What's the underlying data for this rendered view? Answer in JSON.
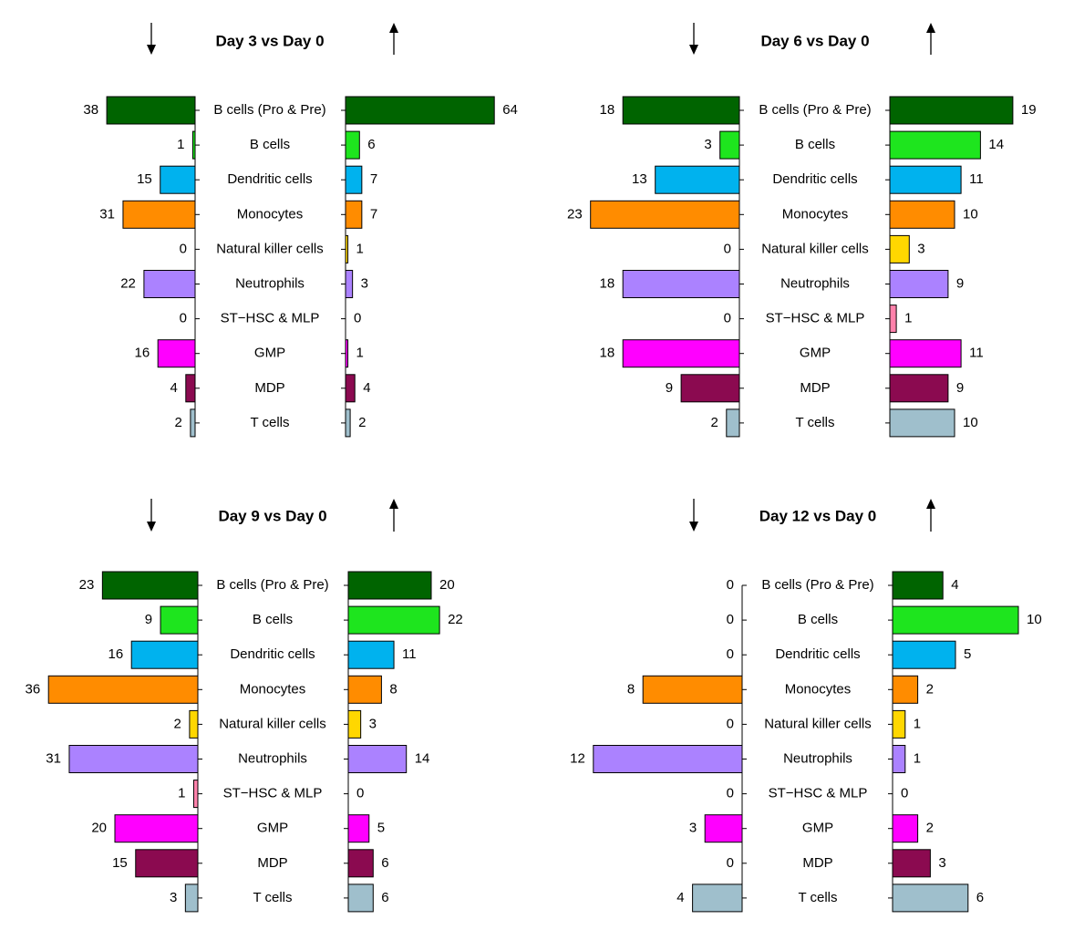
{
  "colors": {
    "B cells (Pro & Pre)": "#006400",
    "B cells": "#1ee51e",
    "Dendritic cells": "#00b2ee",
    "Monocytes": "#ff8c00",
    "Natural killer cells": "#ffd700",
    "Neutrophils": "#ab82ff",
    "ST−HSC & MLP": "#ff82ab",
    "GMP": "#ff00ff",
    "MDP": "#8b0a50",
    "T cells": "#9fbfcc"
  },
  "chart_data": [
    {
      "type": "bar",
      "title": "Day 3 vs Day 0",
      "down_marker": "↓",
      "up_marker": "↑",
      "categories": [
        "B cells (Pro & Pre)",
        "B cells",
        "Dendritic cells",
        "Monocytes",
        "Natural killer cells",
        "Neutrophils",
        "ST−HSC & MLP",
        "GMP",
        "MDP",
        "T cells"
      ],
      "series": [
        {
          "name": "down",
          "values": [
            38,
            1,
            15,
            31,
            0,
            22,
            0,
            16,
            4,
            2
          ]
        },
        {
          "name": "up",
          "values": [
            64,
            6,
            7,
            7,
            1,
            3,
            0,
            1,
            4,
            2
          ]
        }
      ]
    },
    {
      "type": "bar",
      "title": "Day 6 vs Day 0",
      "down_marker": "↓",
      "up_marker": "↑",
      "categories": [
        "B cells (Pro & Pre)",
        "B cells",
        "Dendritic cells",
        "Monocytes",
        "Natural killer cells",
        "Neutrophils",
        "ST−HSC & MLP",
        "GMP",
        "MDP",
        "T cells"
      ],
      "series": [
        {
          "name": "down",
          "values": [
            18,
            3,
            13,
            23,
            0,
            18,
            0,
            18,
            9,
            2
          ]
        },
        {
          "name": "up",
          "values": [
            19,
            14,
            11,
            10,
            3,
            9,
            1,
            11,
            9,
            10
          ]
        }
      ]
    },
    {
      "type": "bar",
      "title": "Day 9 vs Day 0",
      "down_marker": "↓",
      "up_marker": "↑",
      "categories": [
        "B cells (Pro & Pre)",
        "B cells",
        "Dendritic cells",
        "Monocytes",
        "Natural killer cells",
        "Neutrophils",
        "ST−HSC & MLP",
        "GMP",
        "MDP",
        "T cells"
      ],
      "series": [
        {
          "name": "down",
          "values": [
            23,
            9,
            16,
            36,
            2,
            31,
            1,
            20,
            15,
            3
          ]
        },
        {
          "name": "up",
          "values": [
            20,
            22,
            11,
            8,
            3,
            14,
            0,
            5,
            6,
            6
          ]
        }
      ]
    },
    {
      "type": "bar",
      "title": "Day 12 vs Day 0",
      "down_marker": "↓",
      "up_marker": "↑",
      "categories": [
        "B cells (Pro & Pre)",
        "B cells",
        "Dendritic cells",
        "Monocytes",
        "Natural killer cells",
        "Neutrophils",
        "ST−HSC & MLP",
        "GMP",
        "MDP",
        "T cells"
      ],
      "series": [
        {
          "name": "down",
          "values": [
            0,
            0,
            0,
            8,
            0,
            12,
            0,
            3,
            0,
            4
          ]
        },
        {
          "name": "up",
          "values": [
            4,
            10,
            5,
            2,
            1,
            1,
            0,
            2,
            3,
            6
          ]
        }
      ]
    }
  ]
}
